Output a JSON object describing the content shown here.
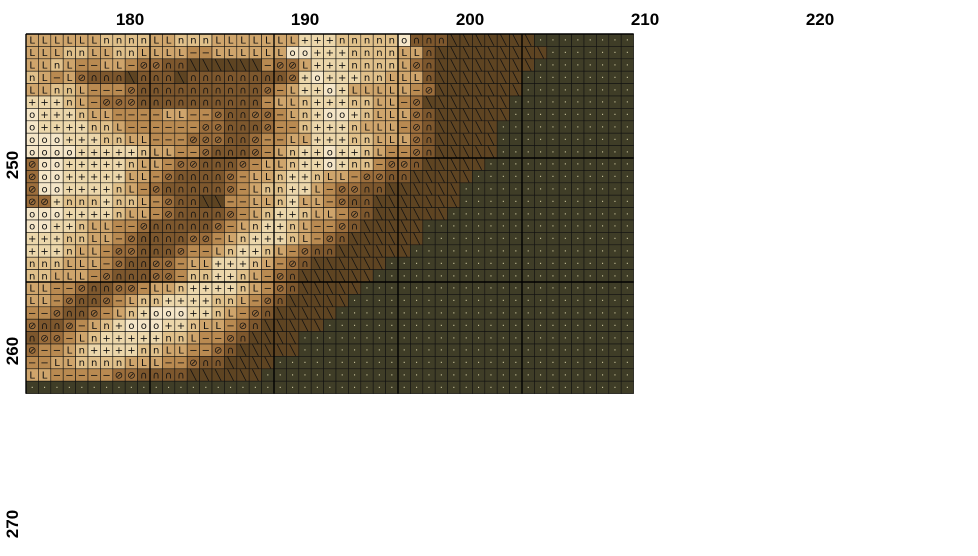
{
  "pattern": {
    "column_labels": [
      "180",
      "190",
      "200",
      "210",
      "220"
    ],
    "row_labels": [
      "250",
      "260",
      "270"
    ],
    "palette": {
      "0": "#f5e6c8",
      "1": "#ecd7ab",
      "2": "#e0c08a",
      "3": "#cfa56c",
      "4": "#b98a51",
      "5": "#9c6e3c",
      "6": "#7d572d",
      "7": "#5e4422",
      "8": "#3f3d27"
    },
    "symbols": {
      "0": "o",
      "1": "+",
      "2": "n",
      "3": "L",
      "4": "−",
      "5": "⊘",
      "6": "∩",
      "7": "╲",
      "8": "·"
    },
    "rows": [
      "3333332222332223333333111222220666777777788888888",
      "3332233223333443333330011122223367777777778888888",
      "3323443345566777777455311122223567777777788888888",
      "2343566676667666666665101112233367777777888888888",
      "3322344456666666666543110133333457777777888888888",
      "1112345556666666666433211122334577777778888888888",
      "0111233444433445665543210012333567777778888888888",
      "0111122344444455666544211123334567777788888888888",
      "0001112233444555665443311122333567777788888888888",
      "0000111112334456665432110112344567777788888888888",
      "5001111123345566654332110122455677777888888888888",
      "5001111133456666543321123345566777778888888888888",
      "5001111234566666543221134556677777788888888888888",
      "5512221223456677443321334566777777788888888888888",
      "0001111233456666543211233456777777888888888888888",
      "0011233445666665432112344567777788888888888888888",
      "1112233456666554321112345677777788888888888888888",
      "1112334556665443211234566777777888888888888888888",
      "2223334566554331112345677777788888888888888888888",
      "2233345666554221123456777777888888888888888888888",
      "3344566554332111123456777778888888888888888888888",
      "3345665432211112234567777788888888888888888888888",
      "4456654321000112345677777888888888888888888888888",
      "5665432100011233456777778888888888888888888888888",
      "6554321111122344567777888888888888888888888888888",
      "5443211112233445677777888888888888888888888888888",
      "4433222233344566777788888888888888888888888888888",
      "3344444556666777777888888888888888888888888888888",
      "8888888888888888888888888888888888888888888888888"
    ]
  }
}
